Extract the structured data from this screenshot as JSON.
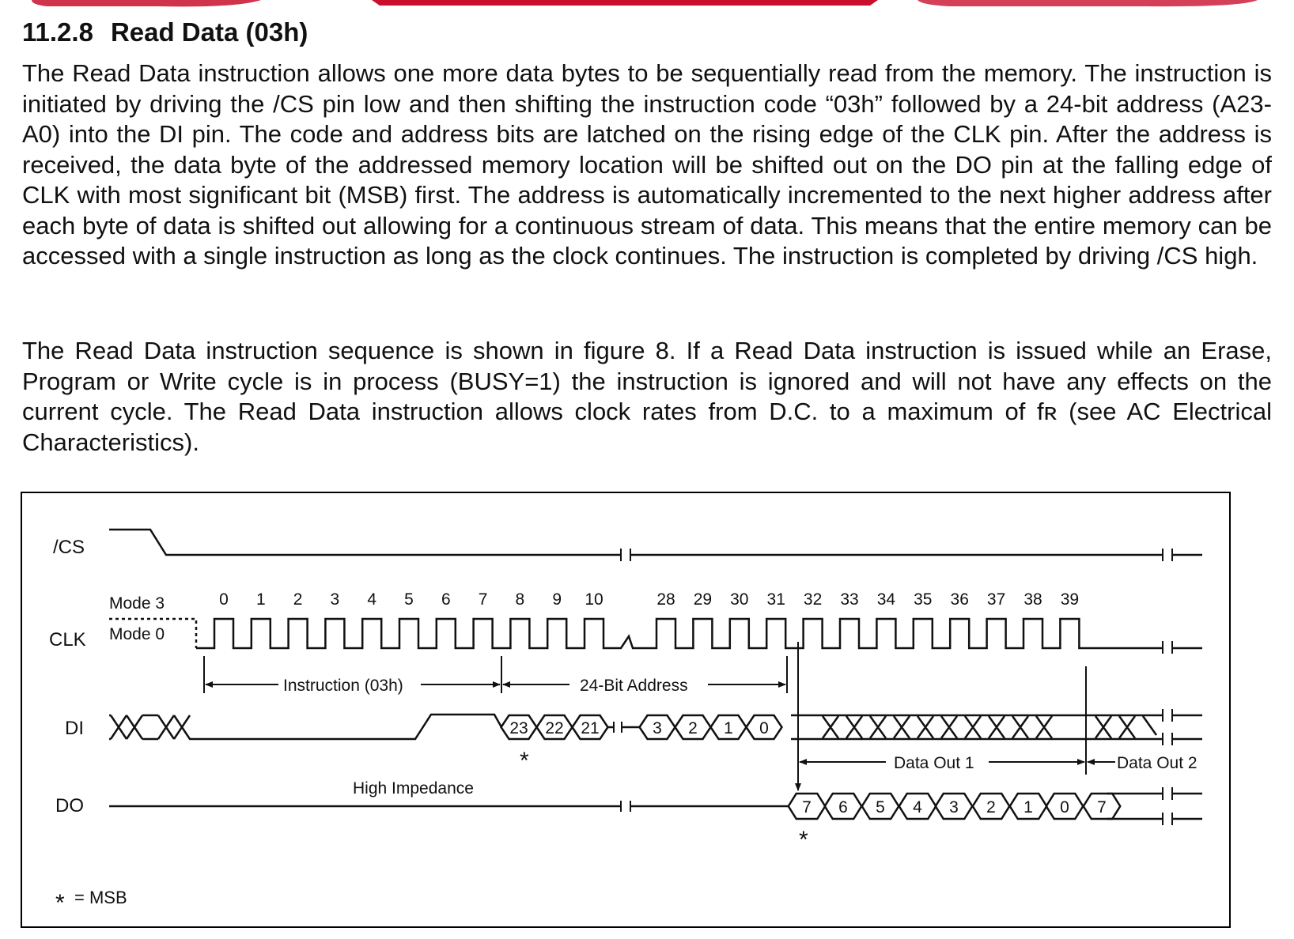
{
  "section": {
    "number": "11.2.8",
    "title": "Read Data (03h)"
  },
  "paragraphs": [
    "The Read Data instruction allows one more data bytes to be sequentially read from the memory. The instruction is initiated by driving the /CS pin low and then shifting the instruction code “03h” followed by a 24-bit address (A23-A0) into the DI pin. The code and address bits are latched on the rising edge of the CLK pin. After the address is received, the data byte of the addressed memory location will be shifted out on the DO pin at the falling edge of CLK with most significant bit (MSB) first. The address is automatically incremented to the next higher address after each byte of data is shifted out allowing for a continuous stream of data. This means that the entire memory can be accessed with a single instruction as long as the clock continues. The instruction is completed by driving /CS high.",
    "The Read Data instruction sequence is shown in figure 8. If a Read Data instruction is issued while an Erase, Program or Write cycle is in process (BUSY=1) the instruction is ignored and will not have any effects on the current cycle. The Read Data instruction allows clock rates from D.C. to a maximum of fʀ (see AC Electrical Characteristics)."
  ],
  "diagram": {
    "signals": {
      "cs": "/CS",
      "clk": "CLK",
      "di": "DI",
      "do": "DO"
    },
    "modes": {
      "mode3": "Mode 3",
      "mode0": "Mode 0"
    },
    "clock_numbers_first": [
      "0",
      "1",
      "2",
      "3",
      "4",
      "5",
      "6",
      "7",
      "8",
      "9",
      "10"
    ],
    "clock_numbers_second": [
      "28",
      "29",
      "30",
      "31",
      "32",
      "33",
      "34",
      "35",
      "36",
      "37",
      "38",
      "39"
    ],
    "spans": {
      "instruction": "Instruction (03h)",
      "address": "24-Bit Address",
      "data_out_1": "Data Out 1",
      "data_out_2": "Data Out 2"
    },
    "di_address_bits": [
      "23",
      "22",
      "21",
      "3",
      "2",
      "1",
      "0"
    ],
    "do_data_bits": [
      "7",
      "6",
      "5",
      "4",
      "3",
      "2",
      "1",
      "0",
      "7"
    ],
    "high_impedance": "High Impedance",
    "msb_marker": "*",
    "legend": "= MSB"
  },
  "colors": {
    "text": "#111111",
    "banner_red": "#c8102e"
  }
}
